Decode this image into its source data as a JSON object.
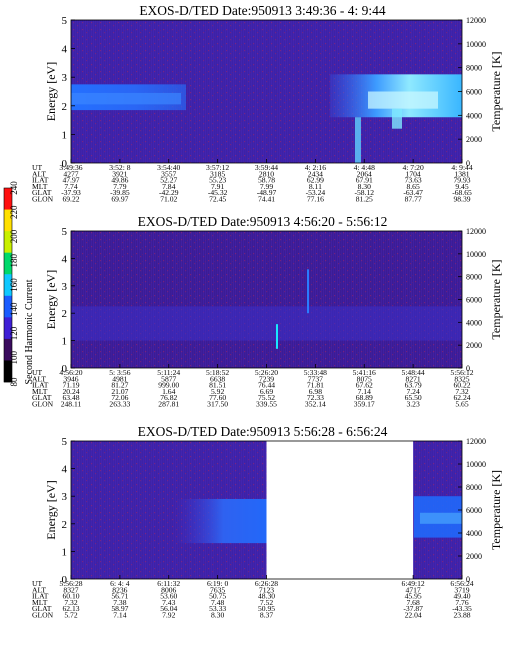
{
  "colorbar": {
    "label": "Second Harmonic Current",
    "ticks": [
      "80",
      "100",
      "120",
      "140",
      "160",
      "180",
      "200",
      "220",
      "240"
    ],
    "colors": [
      "#000000",
      "#3a0c5e",
      "#3e1fd6",
      "#1a5cff",
      "#0fc8ff",
      "#00d96b",
      "#c9f000",
      "#ffe000",
      "#ff1010"
    ]
  },
  "chart_data": [
    {
      "type": "heatmap",
      "title": "EXOS-D/TED   Date:950913  3:49:36 - 4: 9:44",
      "ylabel": "Energy [eV]",
      "y2label": "Temperature [K]",
      "ylim": [
        0,
        5
      ],
      "y2lim": [
        0,
        12000
      ],
      "yticks": [
        "0",
        "1",
        "2",
        "3",
        "4",
        "5"
      ],
      "y2ticks": [
        "0",
        "2000",
        "4000",
        "6000",
        "8000",
        "10000",
        "12000"
      ],
      "table_labels": [
        "UT",
        "ALT",
        "ILAT",
        "MLT",
        "GLAT",
        "GLON"
      ],
      "columns": [
        [
          "3:49:36",
          "4277",
          "47.97",
          "7.74",
          "-37.93",
          "69.22"
        ],
        [
          "3:52: 8",
          "3921",
          "49.86",
          "7.79",
          "-39.85",
          "69.97"
        ],
        [
          "3:54:40",
          "3557",
          "52.27",
          "7.84",
          "-42.29",
          "71.02"
        ],
        [
          "3:57:12",
          "3185",
          "55.23",
          "7.91",
          "-45.32",
          "72.45"
        ],
        [
          "3:59:44",
          "2810",
          "58.78",
          "7.99",
          "-48.97",
          "74.41"
        ],
        [
          "4: 2:16",
          "2434",
          "62.99",
          "8.11",
          "-53.24",
          "77.16"
        ],
        [
          "4: 4:48",
          "2064",
          "67.91",
          "8.30",
          "-58.12",
          "81.25"
        ],
        [
          "4: 7:20",
          "1704",
          "73.63",
          "8.65",
          "-63.47",
          "87.77"
        ],
        [
          "4: 9:44",
          "1381",
          "79.93",
          "9.45",
          "-68.65",
          "98.39"
        ]
      ],
      "data_gaps": []
    },
    {
      "type": "heatmap",
      "title": "EXOS-D/TED   Date:950913  4:56:20 - 5:56:12",
      "ylabel": "Energy [eV]",
      "y2label": "Temperature [K]",
      "ylim": [
        0,
        5
      ],
      "y2lim": [
        0,
        12000
      ],
      "yticks": [
        "0",
        "1",
        "2",
        "3",
        "4",
        "5"
      ],
      "y2ticks": [
        "0",
        "2000",
        "4000",
        "6000",
        "8000",
        "10000",
        "12000"
      ],
      "table_labels": [
        "UT",
        "ALT",
        "ILAT",
        "MLT",
        "GLAT",
        "GLON"
      ],
      "columns": [
        [
          "4:56:20",
          "3946",
          "71.19",
          "20.24",
          "63.48",
          "248.11"
        ],
        [
          "5: 3:56",
          "4981",
          "81.27",
          "21.07",
          "72.06",
          "263.33"
        ],
        [
          "5:11:24",
          "5877",
          "999.00",
          "1.64",
          "76.82",
          "287.81"
        ],
        [
          "5:18:52",
          "6638",
          "81.51",
          "5.92",
          "77.60",
          "317.50"
        ],
        [
          "5:26:20",
          "7239",
          "76.44",
          "6.69",
          "75.52",
          "339.55"
        ],
        [
          "5:33:48",
          "7737",
          "71.81",
          "6.98",
          "72.33",
          "352.14"
        ],
        [
          "5:41:16",
          "8075",
          "67.62",
          "7.14",
          "68.89",
          "359.17"
        ],
        [
          "5:48:44",
          "8271",
          "63.79",
          "7.24",
          "65.50",
          "3.23"
        ],
        [
          "5:56:12",
          "8325",
          "60.22",
          "7.32",
          "62.24",
          "5.65"
        ]
      ],
      "data_gaps": []
    },
    {
      "type": "heatmap",
      "title": "EXOS-D/TED   Date:950913  5:56:28 - 6:56:24",
      "ylabel": "Energy [eV]",
      "y2label": "Temperature [K]",
      "ylim": [
        0,
        5
      ],
      "y2lim": [
        0,
        12000
      ],
      "yticks": [
        "0",
        "1",
        "2",
        "3",
        "4",
        "5"
      ],
      "y2ticks": [
        "0",
        "2000",
        "4000",
        "6000",
        "8000",
        "10000",
        "12000"
      ],
      "table_labels": [
        "UT",
        "ALT",
        "ILAT",
        "MLT",
        "GLAT",
        "GLON"
      ],
      "columns": [
        [
          "5:56:28",
          "8327",
          "60.10",
          "7.32",
          "62.13",
          "5.72"
        ],
        [
          "6: 4: 4",
          "8236",
          "56.71",
          "7.38",
          "58.97",
          "7.14"
        ],
        [
          "6:11:32",
          "8006",
          "53.60",
          "7.43",
          "56.04",
          "7.92"
        ],
        [
          "6:19: 0",
          "7635",
          "50.75",
          "7.48",
          "53.33",
          "8.30"
        ],
        [
          "6:26:28",
          "7123",
          "48.30",
          "7.52",
          "50.95",
          "8.37"
        ],
        [
          "",
          "",
          "",
          "",
          "",
          ""
        ],
        [
          "",
          "",
          "",
          "",
          "",
          ""
        ],
        [
          "6:49:12",
          "4717",
          "45.95",
          "7.68",
          "-37.87",
          "22.04"
        ],
        [
          "6:56:24",
          "3719",
          "49.40",
          "7.76",
          "-43.35",
          "23.88"
        ]
      ],
      "data_gaps": [
        [
          "6:26:28",
          "6:49:12"
        ]
      ]
    }
  ]
}
